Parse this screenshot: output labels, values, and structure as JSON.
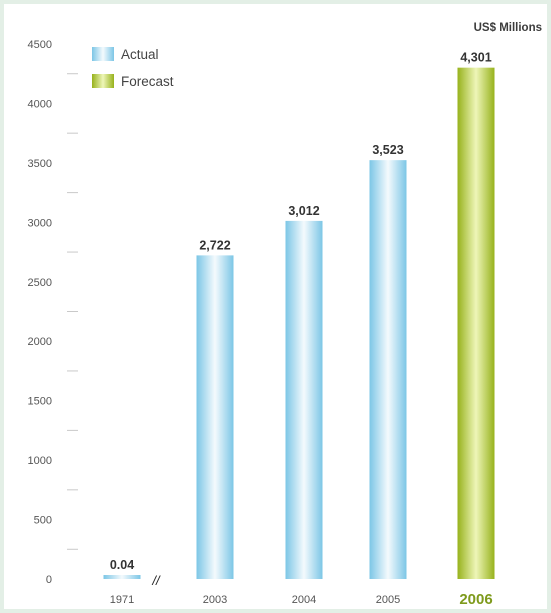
{
  "chart_data": {
    "type": "bar",
    "unit_label": "US$ Millions",
    "categories": [
      "1971",
      "2003",
      "2004",
      "2005",
      "2006"
    ],
    "values": [
      0.04,
      2722,
      3012,
      3523,
      4301
    ],
    "value_labels": [
      "0.04",
      "2,722",
      "3,012",
      "3,523",
      "4,301"
    ],
    "kinds": [
      "actual",
      "actual",
      "actual",
      "actual",
      "forecast"
    ],
    "legend": [
      {
        "label": "Actual",
        "kind": "actual"
      },
      {
        "label": "Forecast",
        "kind": "forecast"
      }
    ],
    "legend_position": "top-left",
    "axis_break_after": "1971",
    "axis_break_symbol": "//",
    "highlight_category": "2006",
    "ylim": [
      0,
      4500
    ],
    "yticks": [
      0,
      500,
      1000,
      1500,
      2000,
      2500,
      3000,
      3500,
      4000,
      4500
    ],
    "grid": false,
    "colors": {
      "actual_edge": "#7cc6e6",
      "actual_mid": "#f4fafd",
      "forecast_edge": "#97b21c",
      "forecast_mid": "#eef6b8",
      "highlight_label": "#7e9a1c"
    }
  }
}
